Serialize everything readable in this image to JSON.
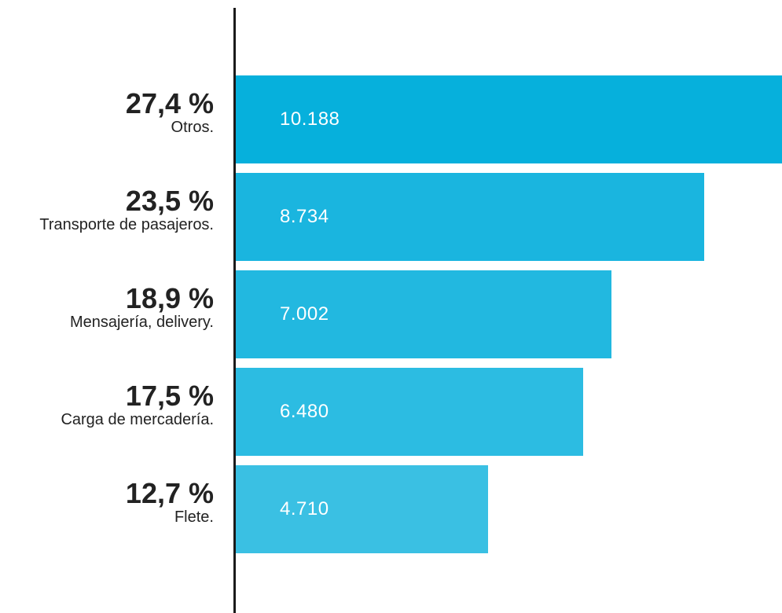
{
  "chart_data": {
    "type": "bar",
    "orientation": "horizontal",
    "categories": [
      "Otros.",
      "Transporte de pasajeros.",
      "Mensajería, delivery.",
      "Carga de mercadería.",
      "Flete."
    ],
    "percents": [
      "27,4 %",
      "23,5 %",
      "18,9 %",
      "17,5 %",
      "12,7 %"
    ],
    "value_labels": [
      "10.188",
      "8.734",
      "7.002",
      "6.480",
      "4.710"
    ],
    "values": [
      10188,
      8734,
      7002,
      6480,
      4710
    ],
    "colors": [
      "#06b0dc",
      "#1ab5df",
      "#22b8e0",
      "#2cbce2",
      "#3ac0e3"
    ],
    "xlim": [
      0,
      10188
    ],
    "grid": false
  }
}
